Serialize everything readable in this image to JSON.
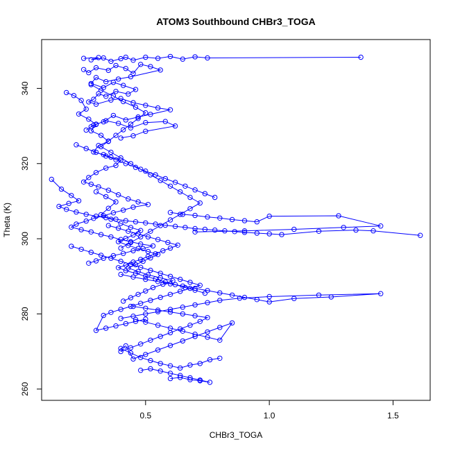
{
  "chart_data": {
    "type": "line",
    "title": "ATOM3 Southbound CHBr3_TOGA",
    "xlabel": "CHBr3_TOGA",
    "ylabel": "Theta (K)",
    "xlim": [
      0.08,
      1.65
    ],
    "ylim": [
      257,
      353
    ],
    "xticks": [
      0.5,
      1.0,
      1.5
    ],
    "xtick_labels": [
      "0.5",
      "1.0",
      "1.5"
    ],
    "yticks": [
      260,
      280,
      300,
      320,
      340
    ],
    "ytick_labels": [
      "260",
      "280",
      "300",
      "320",
      "340"
    ],
    "grid": false,
    "legend": "none",
    "marker": "open-circle",
    "color": "#0000ff",
    "series": [
      {
        "x": [
          0.25,
          0.31,
          0.28,
          0.33,
          0.36,
          0.4,
          0.42,
          0.45,
          0.5,
          0.55,
          0.6,
          0.65,
          0.7,
          0.75,
          1.37
        ],
        "y": [
          348.0,
          348.2,
          347.6,
          348.1,
          347.2,
          347.9,
          348.3,
          347.5,
          348.3,
          348.0,
          348.5,
          347.8,
          348.4,
          348.1,
          348.3
        ]
      },
      {
        "x": [
          0.25,
          0.27,
          0.3,
          0.35,
          0.38,
          0.42,
          0.45,
          0.48,
          0.52,
          0.56,
          0.44,
          0.39,
          0.34,
          0.3,
          0.28,
          0.33,
          0.37,
          0.41,
          0.46,
          0.43,
          0.38,
          0.34,
          0.31,
          0.29,
          0.27,
          0.3,
          0.36,
          0.4,
          0.45,
          0.5,
          0.55,
          0.6,
          0.52,
          0.47,
          0.42,
          0.37,
          0.33,
          0.3,
          0.28,
          0.26,
          0.29,
          0.34,
          0.39,
          0.44,
          0.5,
          0.58,
          0.62,
          0.5,
          0.45,
          0.4
        ],
        "y": [
          345.0,
          344.2,
          345.5,
          344.8,
          346.1,
          345.3,
          344.0,
          346.4,
          345.8,
          344.9,
          343.1,
          342.5,
          341.8,
          342.9,
          341.3,
          340.2,
          341.6,
          340.8,
          339.7,
          338.5,
          339.2,
          337.9,
          338.6,
          337.1,
          336.4,
          335.8,
          336.9,
          337.3,
          336.2,
          335.5,
          334.8,
          334.3,
          333.1,
          332.4,
          331.6,
          332.8,
          331.1,
          330.5,
          329.8,
          328.9,
          330.2,
          331.4,
          330.7,
          329.5,
          330.9,
          331.2,
          330.0,
          328.6,
          327.4,
          326.8
        ]
      },
      {
        "x": [
          0.18,
          0.21,
          0.24,
          0.26,
          0.23,
          0.27,
          0.3,
          0.28,
          0.32,
          0.35,
          0.31,
          0.29,
          0.33,
          0.36,
          0.4,
          0.38,
          0.34,
          0.3,
          0.27,
          0.25,
          0.28,
          0.31,
          0.35,
          0.39,
          0.43,
          0.47,
          0.51,
          0.45,
          0.41,
          0.37,
          0.33,
          0.29,
          0.26,
          0.22,
          0.2,
          0.24,
          0.28,
          0.32,
          0.36,
          0.4,
          0.44,
          0.48,
          0.53,
          0.49,
          0.45,
          0.41,
          0.37,
          0.33,
          0.3,
          0.27
        ],
        "y": [
          338.9,
          338.1,
          336.8,
          334.5,
          333.2,
          331.8,
          330.4,
          328.7,
          327.5,
          325.9,
          324.8,
          323.1,
          322.4,
          321.7,
          320.9,
          319.5,
          318.8,
          317.6,
          316.3,
          315.1,
          314.5,
          313.8,
          312.9,
          311.7,
          310.6,
          309.8,
          309.1,
          308.4,
          307.6,
          306.9,
          306.1,
          305.4,
          304.7,
          303.9,
          303.1,
          302.4,
          301.8,
          301.1,
          300.5,
          299.8,
          299.2,
          298.6,
          298.1,
          297.4,
          296.8,
          296.1,
          295.5,
          294.8,
          294.1,
          293.5
        ]
      },
      {
        "x": [
          0.12,
          0.16,
          0.2,
          0.23,
          0.19,
          0.15,
          0.18,
          0.22,
          0.26,
          0.3,
          0.34,
          0.38,
          0.42,
          0.46,
          0.5,
          0.54,
          0.58,
          0.62,
          0.66,
          0.7,
          0.74,
          0.78,
          0.82,
          0.86,
          0.9,
          0.95,
          1.0,
          1.05,
          1.2,
          1.35,
          1.42,
          1.61
        ],
        "y": [
          315.8,
          313.2,
          311.5,
          310.1,
          309.4,
          308.6,
          307.8,
          307.1,
          306.5,
          306.0,
          305.6,
          305.2,
          304.8,
          304.5,
          304.2,
          303.9,
          303.6,
          303.3,
          303.0,
          302.7,
          302.5,
          302.3,
          302.1,
          301.9,
          301.7,
          301.5,
          301.3,
          301.1,
          302.0,
          302.3,
          302.1,
          300.9
        ]
      },
      {
        "x": [
          0.6,
          0.65,
          0.7,
          0.75,
          0.8,
          0.85,
          0.9,
          0.95,
          1.0,
          1.28,
          1.45,
          1.3,
          1.1,
          0.9,
          0.7
        ],
        "y": [
          307.0,
          306.5,
          306.2,
          305.8,
          305.5,
          305.1,
          304.8,
          304.5,
          306.0,
          306.1,
          303.4,
          303.0,
          302.5,
          302.1,
          301.8
        ]
      },
      {
        "x": [
          0.4,
          0.45,
          0.5,
          0.55,
          0.6,
          0.65,
          0.7,
          0.75,
          0.8,
          0.85,
          0.9,
          0.95,
          1.0,
          1.1,
          1.25,
          1.45,
          1.2,
          1.0,
          0.88,
          0.8,
          0.75,
          0.7,
          0.65,
          0.6,
          0.55,
          0.5,
          0.45,
          0.4
        ],
        "y": [
          290.5,
          289.8,
          289.2,
          288.6,
          288.0,
          287.4,
          286.8,
          286.2,
          285.6,
          285.0,
          284.4,
          283.8,
          283.2,
          284.1,
          284.5,
          285.4,
          285.0,
          284.6,
          284.2,
          283.6,
          283.0,
          282.4,
          281.8,
          281.2,
          280.6,
          280.0,
          279.4,
          278.8
        ]
      },
      {
        "x": [
          0.2,
          0.24,
          0.28,
          0.32,
          0.36,
          0.4,
          0.44,
          0.48,
          0.52,
          0.56,
          0.6,
          0.64,
          0.68,
          0.72,
          0.68,
          0.64,
          0.6,
          0.56,
          0.52,
          0.48,
          0.44,
          0.4,
          0.36,
          0.33,
          0.3,
          0.34,
          0.38,
          0.42,
          0.46,
          0.5
        ],
        "y": [
          298.0,
          297.2,
          296.4,
          295.6,
          294.8,
          294.0,
          293.2,
          292.4,
          291.6,
          290.8,
          290.0,
          289.2,
          288.4,
          287.6,
          286.8,
          286.0,
          285.2,
          284.4,
          283.6,
          282.8,
          282.0,
          281.2,
          280.4,
          279.6,
          275.6,
          276.2,
          276.8,
          277.4,
          278.0,
          278.6
        ]
      },
      {
        "x": [
          0.46,
          0.5,
          0.55,
          0.6,
          0.65,
          0.7,
          0.75,
          0.8,
          0.85,
          0.8,
          0.75,
          0.7,
          0.65,
          0.6,
          0.55,
          0.5,
          0.45,
          0.42,
          0.4,
          0.44,
          0.48,
          0.52,
          0.56,
          0.6,
          0.64,
          0.68,
          0.72,
          0.76,
          0.8
        ],
        "y": [
          278.5,
          277.8,
          277.0,
          276.2,
          275.4,
          274.6,
          273.8,
          273.0,
          277.6,
          276.4,
          275.2,
          274.0,
          272.8,
          271.6,
          270.4,
          269.2,
          268.0,
          271.5,
          270.8,
          269.6,
          268.4,
          267.6,
          266.8,
          266.2,
          265.6,
          266.4,
          266.8,
          267.8,
          268.2
        ]
      },
      {
        "x": [
          0.6,
          0.64,
          0.68,
          0.72,
          0.76,
          0.72,
          0.68,
          0.64,
          0.6,
          0.56,
          0.52,
          0.48
        ],
        "y": [
          262.8,
          263.1,
          262.5,
          262.2,
          261.8,
          262.4,
          263.0,
          263.6,
          264.2,
          264.8,
          265.4,
          265.0
        ]
      },
      {
        "x": [
          0.3,
          0.34,
          0.38,
          0.35,
          0.32,
          0.36,
          0.4,
          0.44,
          0.48,
          0.45,
          0.42,
          0.39,
          0.43,
          0.47,
          0.51,
          0.55,
          0.52,
          0.49,
          0.46,
          0.43,
          0.47,
          0.51,
          0.56,
          0.61,
          0.57,
          0.53,
          0.5,
          0.47,
          0.44,
          0.41
        ],
        "y": [
          312.5,
          311.2,
          309.8,
          308.1,
          306.4,
          305.2,
          304.1,
          303.0,
          302.2,
          301.0,
          300.1,
          299.2,
          298.2,
          297.4,
          296.6,
          295.8,
          294.9,
          294.0,
          293.1,
          292.2,
          291.3,
          290.4,
          289.6,
          288.8,
          287.9,
          287.0,
          286.1,
          285.2,
          284.3,
          283.4
        ]
      },
      {
        "x": [
          0.28,
          0.32,
          0.37,
          0.41,
          0.46,
          0.5,
          0.47,
          0.44,
          0.41,
          0.38,
          0.35,
          0.32,
          0.36,
          0.4,
          0.44,
          0.48,
          0.52,
          0.56,
          0.6,
          0.64,
          0.68,
          0.72,
          0.68,
          0.64,
          0.6,
          0.56,
          0.52,
          0.48,
          0.44,
          0.4
        ],
        "y": [
          341.0,
          339.5,
          338.0,
          336.5,
          335.0,
          333.5,
          332.0,
          330.5,
          329.0,
          327.5,
          326.0,
          324.5,
          323.0,
          321.5,
          320.0,
          318.5,
          317.0,
          315.5,
          314.0,
          312.5,
          311.0,
          309.5,
          308.0,
          306.5,
          305.0,
          303.5,
          302.0,
          300.5,
          299.0,
          297.5
        ]
      },
      {
        "x": [
          0.35,
          0.39,
          0.43,
          0.47,
          0.51,
          0.55,
          0.59,
          0.63,
          0.6,
          0.57,
          0.54,
          0.51,
          0.48,
          0.45,
          0.42,
          0.39,
          0.42,
          0.46,
          0.5,
          0.54,
          0.58,
          0.62,
          0.66,
          0.7,
          0.74
        ],
        "y": [
          303.5,
          302.8,
          302.0,
          301.3,
          300.5,
          299.8,
          299.0,
          298.3,
          297.5,
          296.8,
          296.0,
          295.3,
          294.5,
          293.8,
          293.0,
          292.3,
          291.5,
          290.8,
          290.0,
          289.3,
          288.5,
          287.8,
          287.0,
          286.3,
          285.5
        ]
      },
      {
        "x": [
          0.22,
          0.26,
          0.3,
          0.34,
          0.38,
          0.42,
          0.46,
          0.5,
          0.54,
          0.58,
          0.62,
          0.66,
          0.7,
          0.74,
          0.78
        ],
        "y": [
          325.0,
          324.0,
          323.0,
          322.0,
          321.0,
          320.0,
          319.0,
          318.0,
          317.0,
          316.0,
          315.0,
          314.0,
          313.0,
          312.0,
          311.0
        ]
      },
      {
        "x": [
          0.45,
          0.5,
          0.55,
          0.6,
          0.65,
          0.7,
          0.75,
          0.72,
          0.68,
          0.64,
          0.6,
          0.56,
          0.52,
          0.48,
          0.44,
          0.4
        ],
        "y": [
          282.0,
          281.5,
          281.0,
          280.5,
          280.0,
          279.5,
          279.0,
          278.0,
          277.0,
          276.0,
          275.0,
          274.0,
          273.0,
          272.0,
          271.0,
          270.0
        ]
      }
    ]
  }
}
